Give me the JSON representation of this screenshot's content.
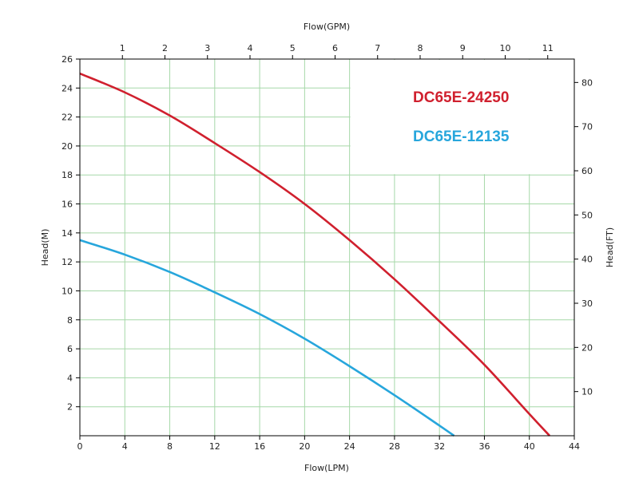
{
  "chart_data": {
    "type": "line",
    "xlabel_bottom": "Flow(LPM)",
    "xlabel_top": "Flow(GPM)",
    "ylabel_left": "Head(M)",
    "ylabel_right": "Head(FT)",
    "xlim": [
      0,
      44
    ],
    "ylim": [
      0,
      26
    ],
    "x_ticks": [
      0,
      4,
      8,
      12,
      16,
      20,
      24,
      28,
      32,
      36,
      40,
      44
    ],
    "y_ticks": [
      2,
      4,
      6,
      8,
      10,
      12,
      14,
      16,
      18,
      20,
      22,
      24,
      26
    ],
    "top_ticks_gpm": [
      1,
      2,
      3,
      4,
      5,
      6,
      7,
      8,
      9,
      10,
      11
    ],
    "right_ticks_ft": [
      10,
      20,
      30,
      40,
      50,
      60,
      70,
      80
    ],
    "grid": true,
    "legend_placement": "top-right",
    "series": [
      {
        "name": "DC65E-24250",
        "color": "#d0202e",
        "x": [
          0,
          4,
          8,
          12,
          16,
          20,
          24,
          28,
          32,
          36,
          40,
          41.8
        ],
        "y": [
          25.0,
          23.7,
          22.1,
          20.2,
          18.2,
          16.0,
          13.5,
          10.8,
          7.9,
          4.9,
          1.5,
          0
        ]
      },
      {
        "name": "DC65E-12135",
        "color": "#27a6dc",
        "x": [
          0,
          4,
          8,
          12,
          16,
          20,
          24,
          28,
          32,
          33.3
        ],
        "y": [
          13.5,
          12.5,
          11.3,
          9.9,
          8.4,
          6.7,
          4.8,
          2.8,
          0.7,
          0
        ]
      }
    ]
  }
}
